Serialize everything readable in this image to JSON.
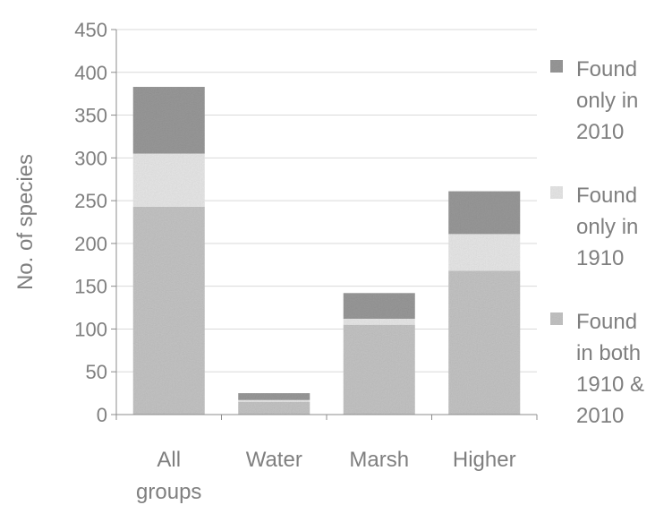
{
  "chart_data": {
    "type": "bar",
    "stacked": true,
    "categories": [
      [
        "All",
        "groups"
      ],
      [
        "Water"
      ],
      [
        "Marsh"
      ],
      [
        "Higher"
      ]
    ],
    "ylabel": "No. of species",
    "ylim": [
      0,
      450
    ],
    "yticks": [
      0,
      50,
      100,
      150,
      200,
      250,
      300,
      350,
      400,
      450
    ],
    "grid": true,
    "legend_position": "right",
    "series": [
      {
        "name": [
          "Found",
          "in both",
          "1910 &",
          "2010"
        ],
        "values": [
          243,
          15,
          105,
          168
        ],
        "color": "#c8c8c8"
      },
      {
        "name": [
          "Found",
          "only in",
          "1910"
        ],
        "values": [
          62,
          2,
          7,
          43
        ],
        "color": "#ececec"
      },
      {
        "name": [
          "Found",
          "only in",
          "2010"
        ],
        "values": [
          78,
          8,
          30,
          50
        ],
        "color": "#9c9c9c"
      }
    ],
    "legend_order": [
      2,
      1,
      0
    ]
  }
}
